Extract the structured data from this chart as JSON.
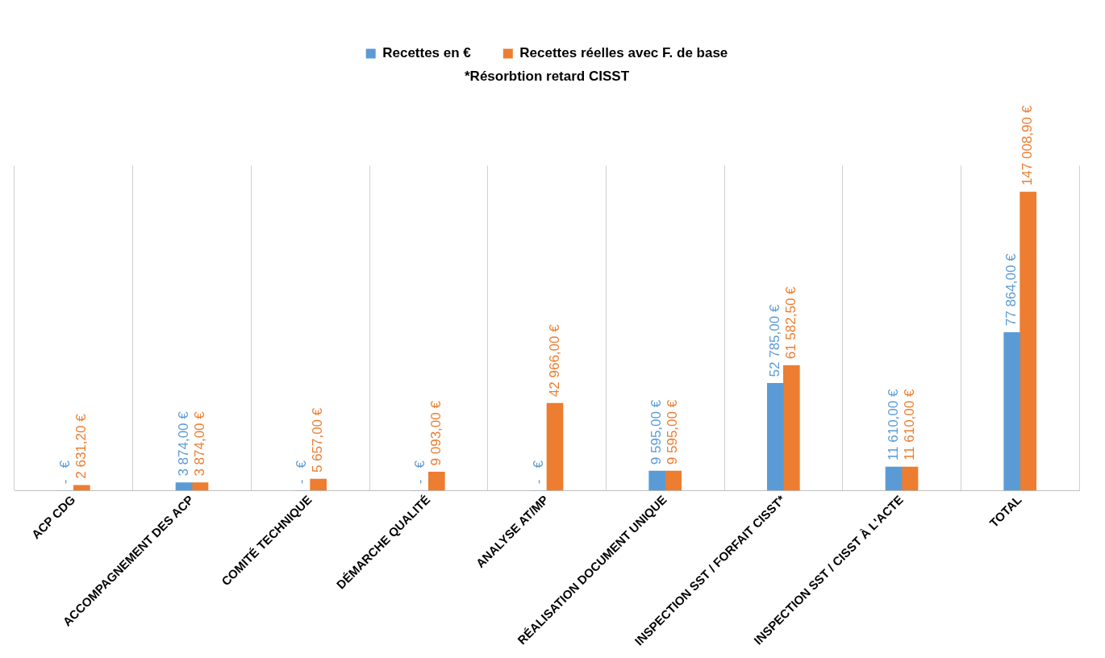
{
  "chart_data": {
    "type": "bar",
    "categories": [
      "ACP CDG",
      "ACCOMPAGNEMENT DES ACP",
      "COMITÉ TECHNIQUE",
      "DÉMARCHE QUALITÉ",
      "ANALYSE AT/MP",
      "RÉALISATION DOCUMENT UNIQUE",
      "INSPECTION SST / FORFAIT CISST*",
      "INSPECTION SST / CISST À L'ACTE",
      "TOTAL"
    ],
    "series": [
      {
        "name": "Recettes en €",
        "color": "#5b9bd5",
        "values": [
          0,
          3874,
          0,
          0,
          0,
          9595,
          52785,
          11610,
          77864
        ],
        "value_labels": [
          "-   €",
          "3 874,00 €",
          "-   €",
          "-   €",
          "-   €",
          "9 595,00 €",
          "52 785,00 €",
          "11 610,00 €",
          "77 864,00 €"
        ]
      },
      {
        "name": "Recettes réelles avec F. de base",
        "color": "#ed7d31",
        "values": [
          2631.2,
          3874,
          5657,
          9093,
          42966,
          9595,
          61582.5,
          11610,
          147008.9
        ],
        "value_labels": [
          "2 631,20 €",
          "3 874,00 €",
          "5 657,00 €",
          "9 093,00 €",
          "42 966,00 €",
          "9 595,00 €",
          "61 582,50 €",
          "11 610,00 €",
          "147 008,90 €"
        ]
      }
    ],
    "annotations": [
      "*Résorbtion retard CISST"
    ],
    "legend": "top",
    "grid": "x",
    "tick_labels": "x"
  }
}
